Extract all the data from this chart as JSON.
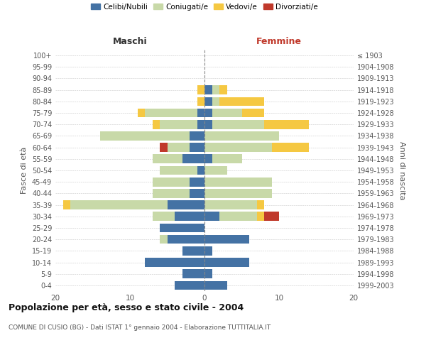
{
  "age_groups": [
    "0-4",
    "5-9",
    "10-14",
    "15-19",
    "20-24",
    "25-29",
    "30-34",
    "35-39",
    "40-44",
    "45-49",
    "50-54",
    "55-59",
    "60-64",
    "65-69",
    "70-74",
    "75-79",
    "80-84",
    "85-89",
    "90-94",
    "95-99",
    "100+"
  ],
  "birth_years": [
    "1999-2003",
    "1994-1998",
    "1989-1993",
    "1984-1988",
    "1979-1983",
    "1974-1978",
    "1969-1973",
    "1964-1968",
    "1959-1963",
    "1954-1958",
    "1949-1953",
    "1944-1948",
    "1939-1943",
    "1934-1938",
    "1929-1933",
    "1924-1928",
    "1919-1923",
    "1914-1918",
    "1909-1913",
    "1904-1908",
    "≤ 1903"
  ],
  "colors": {
    "celibi": "#4472a4",
    "coniugati": "#c8d9a8",
    "vedovi": "#f5c842",
    "divorziati": "#c0392b"
  },
  "males": {
    "celibi": [
      4,
      3,
      8,
      3,
      5,
      6,
      4,
      5,
      2,
      2,
      1,
      3,
      2,
      2,
      1,
      1,
      0,
      0,
      0,
      0,
      0
    ],
    "coniugati": [
      0,
      0,
      0,
      0,
      1,
      0,
      3,
      13,
      5,
      5,
      5,
      4,
      3,
      12,
      5,
      7,
      0,
      0,
      0,
      0,
      0
    ],
    "vedovi": [
      0,
      0,
      0,
      0,
      0,
      0,
      0,
      1,
      0,
      0,
      0,
      0,
      0,
      0,
      1,
      1,
      1,
      1,
      0,
      0,
      0
    ],
    "divorziati": [
      0,
      0,
      0,
      0,
      0,
      0,
      0,
      0,
      0,
      0,
      0,
      0,
      1,
      0,
      0,
      0,
      0,
      0,
      0,
      0,
      0
    ]
  },
  "females": {
    "celibi": [
      3,
      1,
      6,
      1,
      6,
      0,
      2,
      0,
      0,
      0,
      0,
      1,
      0,
      0,
      1,
      1,
      1,
      1,
      0,
      0,
      0
    ],
    "coniugati": [
      0,
      0,
      0,
      0,
      0,
      0,
      5,
      7,
      9,
      9,
      3,
      4,
      9,
      10,
      7,
      4,
      1,
      1,
      0,
      0,
      0
    ],
    "vedovi": [
      0,
      0,
      0,
      0,
      0,
      0,
      1,
      1,
      0,
      0,
      0,
      0,
      5,
      0,
      6,
      3,
      6,
      1,
      0,
      0,
      0
    ],
    "divorziati": [
      0,
      0,
      0,
      0,
      0,
      0,
      2,
      0,
      0,
      0,
      0,
      0,
      0,
      0,
      0,
      0,
      0,
      0,
      0,
      0,
      0
    ]
  },
  "title": "Popolazione per età, sesso e stato civile - 2004",
  "subtitle": "COMUNE DI CUSIO (BG) - Dati ISTAT 1° gennaio 2004 - Elaborazione TUTTITALIA.IT",
  "xlabel_left": "Maschi",
  "xlabel_right": "Femmine",
  "ylabel_left": "Fasce di età",
  "ylabel_right": "Anni di nascita",
  "legend_labels": [
    "Celibi/Nubili",
    "Coniugati/e",
    "Vedovi/e",
    "Divorziati/e"
  ],
  "xlim": 20,
  "background_color": "#ffffff"
}
